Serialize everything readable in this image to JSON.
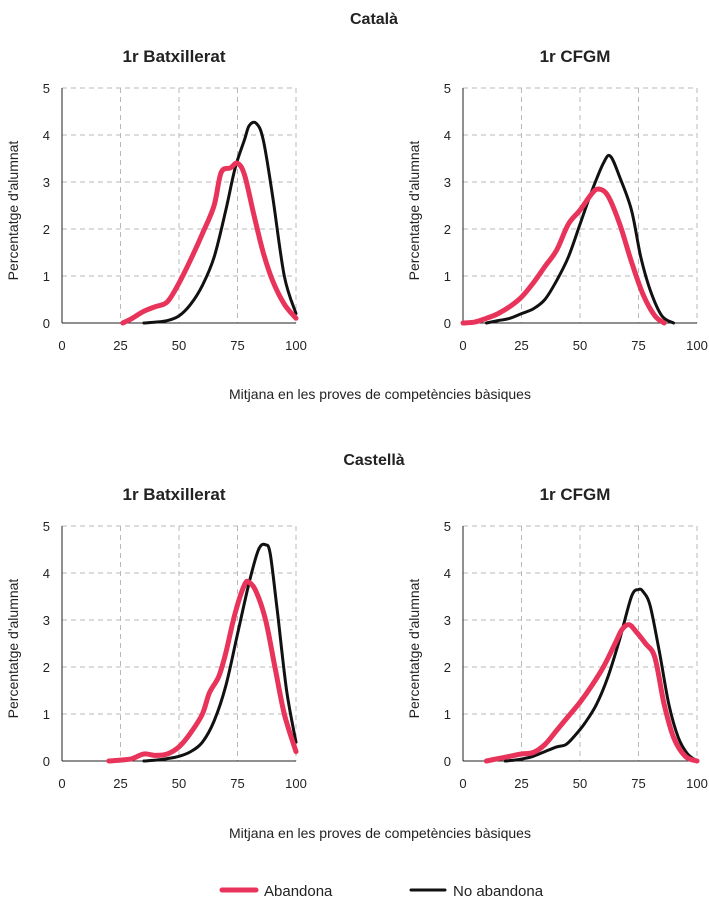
{
  "colors": {
    "abandona": "#e8335a",
    "no_abandona": "#111111"
  },
  "legend": [
    {
      "label": "Abandona",
      "color": "#e8335a"
    },
    {
      "label": "No abandona",
      "color": "#111111"
    }
  ],
  "sections": [
    {
      "title": "Català",
      "xlabel": "Mitjana en les proves de competències bàsiques"
    },
    {
      "title": "Castellà",
      "xlabel": "Mitjana en les proves de competències bàsiques"
    }
  ],
  "chart_data": [
    {
      "type": "line",
      "section": 0,
      "panel": "left",
      "title": "1r Batxillerat",
      "xlabel": "",
      "ylabel": "Percentatge d'alumnat",
      "xlim": [
        0,
        100
      ],
      "ylim": [
        0,
        5
      ],
      "xticks": [
        0,
        25,
        50,
        75,
        100
      ],
      "yticks": [
        0,
        1,
        2,
        3,
        4,
        5
      ],
      "grid": true,
      "series": [
        {
          "name": "Abandona",
          "x": [
            26,
            30,
            35,
            40,
            45,
            50,
            55,
            60,
            65,
            68,
            72,
            75,
            78,
            82,
            86,
            90,
            95,
            100
          ],
          "y": [
            0,
            0.1,
            0.25,
            0.35,
            0.45,
            0.85,
            1.35,
            1.9,
            2.5,
            3.2,
            3.3,
            3.4,
            3.15,
            2.3,
            1.5,
            0.9,
            0.4,
            0.1
          ]
        },
        {
          "name": "No abandona",
          "x": [
            35,
            40,
            45,
            50,
            55,
            60,
            65,
            70,
            74,
            78,
            80,
            83,
            86,
            90,
            95,
            100
          ],
          "y": [
            0,
            0.02,
            0.05,
            0.15,
            0.4,
            0.8,
            1.4,
            2.4,
            3.3,
            3.9,
            4.2,
            4.25,
            3.9,
            2.7,
            1.0,
            0.2
          ]
        }
      ]
    },
    {
      "type": "line",
      "section": 0,
      "panel": "right",
      "title": "1r CFGM",
      "xlabel": "",
      "ylabel": "Percentatge d'alumnat",
      "xlim": [
        0,
        100
      ],
      "ylim": [
        0,
        5
      ],
      "xticks": [
        0,
        25,
        50,
        75,
        100
      ],
      "yticks": [
        0,
        1,
        2,
        3,
        4,
        5
      ],
      "grid": true,
      "series": [
        {
          "name": "Abandona",
          "x": [
            0,
            5,
            10,
            15,
            20,
            25,
            30,
            35,
            40,
            45,
            50,
            55,
            58,
            62,
            67,
            72,
            77,
            82,
            86
          ],
          "y": [
            0,
            0.02,
            0.1,
            0.2,
            0.35,
            0.55,
            0.85,
            1.2,
            1.55,
            2.1,
            2.4,
            2.75,
            2.85,
            2.7,
            2.1,
            1.3,
            0.6,
            0.15,
            0
          ]
        },
        {
          "name": "No abandona",
          "x": [
            10,
            15,
            20,
            25,
            30,
            35,
            40,
            45,
            50,
            55,
            60,
            63,
            67,
            72,
            76,
            80,
            85,
            90
          ],
          "y": [
            0,
            0.05,
            0.1,
            0.2,
            0.3,
            0.5,
            0.9,
            1.4,
            2.1,
            2.8,
            3.4,
            3.55,
            3.1,
            2.4,
            1.4,
            0.7,
            0.15,
            0
          ]
        }
      ]
    },
    {
      "type": "line",
      "section": 1,
      "panel": "left",
      "title": "1r Batxillerat",
      "xlabel": "",
      "ylabel": "Percentatge d'alumnat",
      "xlim": [
        0,
        100
      ],
      "ylim": [
        0,
        5
      ],
      "xticks": [
        0,
        25,
        50,
        75,
        100
      ],
      "yticks": [
        0,
        1,
        2,
        3,
        4,
        5
      ],
      "grid": true,
      "series": [
        {
          "name": "Abandona",
          "x": [
            20,
            25,
            30,
            35,
            40,
            45,
            50,
            55,
            60,
            63,
            67,
            70,
            74,
            78,
            80,
            83,
            87,
            91,
            95,
            100
          ],
          "y": [
            0,
            0.02,
            0.05,
            0.15,
            0.12,
            0.15,
            0.3,
            0.6,
            1.0,
            1.45,
            1.8,
            2.3,
            3.15,
            3.75,
            3.8,
            3.6,
            3.0,
            2.0,
            1.0,
            0.2
          ]
        },
        {
          "name": "No abandona",
          "x": [
            35,
            40,
            45,
            50,
            55,
            60,
            65,
            70,
            75,
            80,
            84,
            87,
            89,
            92,
            96,
            100
          ],
          "y": [
            0,
            0.02,
            0.05,
            0.1,
            0.2,
            0.4,
            0.85,
            1.6,
            2.7,
            3.8,
            4.5,
            4.6,
            4.4,
            3.2,
            1.5,
            0.4
          ]
        }
      ]
    },
    {
      "type": "line",
      "section": 1,
      "panel": "right",
      "title": "1r CFGM",
      "xlabel": "",
      "ylabel": "Percentatge d'alumnat",
      "xlim": [
        0,
        100
      ],
      "ylim": [
        0,
        5
      ],
      "xticks": [
        0,
        25,
        50,
        75,
        100
      ],
      "yticks": [
        0,
        1,
        2,
        3,
        4,
        5
      ],
      "grid": true,
      "series": [
        {
          "name": "Abandona",
          "x": [
            10,
            15,
            20,
            25,
            30,
            35,
            40,
            45,
            50,
            55,
            60,
            65,
            68,
            71,
            74,
            78,
            82,
            86,
            90,
            95,
            100
          ],
          "y": [
            0,
            0.05,
            0.1,
            0.15,
            0.18,
            0.35,
            0.65,
            0.95,
            1.25,
            1.6,
            2.0,
            2.5,
            2.8,
            2.9,
            2.75,
            2.5,
            2.2,
            1.2,
            0.5,
            0.1,
            0
          ]
        },
        {
          "name": "No abandona",
          "x": [
            18,
            22,
            26,
            30,
            35,
            40,
            44,
            48,
            52,
            57,
            62,
            67,
            72,
            75,
            77,
            80,
            84,
            88,
            92,
            96,
            100
          ],
          "y": [
            0,
            0.02,
            0.05,
            0.1,
            0.2,
            0.3,
            0.35,
            0.55,
            0.8,
            1.2,
            1.8,
            2.6,
            3.5,
            3.65,
            3.6,
            3.3,
            2.3,
            1.2,
            0.5,
            0.15,
            0
          ]
        }
      ]
    }
  ]
}
